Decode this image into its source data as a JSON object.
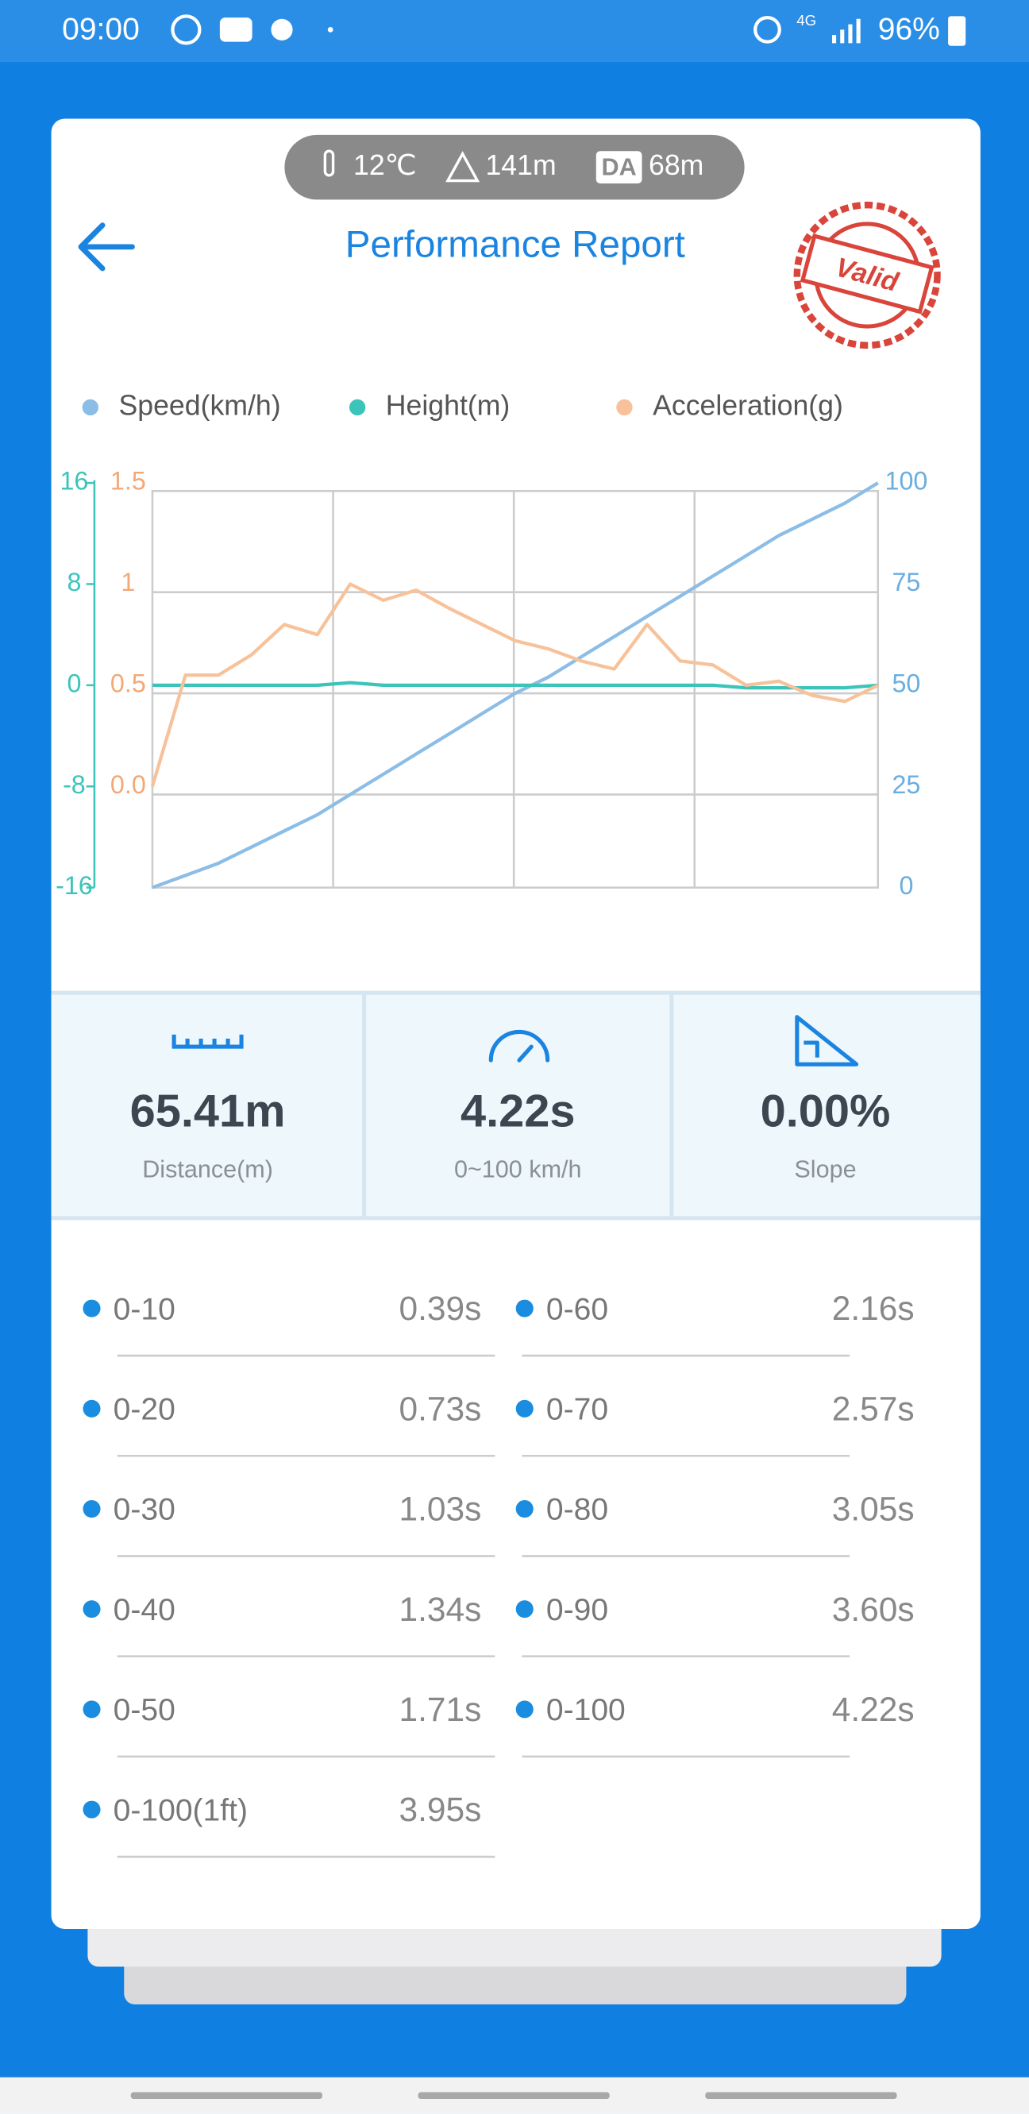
{
  "status_bar": {
    "time": "09:00",
    "network": "4G",
    "battery": "96%"
  },
  "conditions": {
    "temperature": "12℃",
    "altitude": "141m",
    "da_label": "DA",
    "density_altitude": "68m"
  },
  "header": {
    "title": "Performance Report",
    "stamp": "Valid"
  },
  "chart_data": {
    "type": "line",
    "grid": true,
    "legend": "top",
    "series": [
      {
        "name": "Speed(km/h)",
        "color": "#8cbde6",
        "axis": "y2",
        "values": [
          0,
          3,
          6,
          10,
          14,
          18,
          23,
          28,
          33,
          38,
          43,
          48,
          52,
          57,
          62,
          67,
          72,
          77,
          82,
          87,
          91,
          95,
          100
        ]
      },
      {
        "name": "Height(m)",
        "color": "#3cc4bb",
        "axis": "y",
        "values": [
          0,
          0,
          0,
          0,
          0,
          0,
          0.2,
          0,
          0,
          0,
          0,
          0,
          0,
          0,
          0,
          0,
          0,
          0,
          -0.2,
          -0.2,
          -0.2,
          -0.2,
          0
        ]
      },
      {
        "name": "Acceleration(g)",
        "color": "#f7c29a",
        "axis": "y3",
        "values": [
          0.0,
          0.55,
          0.55,
          0.65,
          0.8,
          0.75,
          1.0,
          0.92,
          0.97,
          0.88,
          0.8,
          0.72,
          0.68,
          0.62,
          0.58,
          0.8,
          0.62,
          0.6,
          0.5,
          0.52,
          0.45,
          0.42,
          0.5
        ]
      }
    ],
    "ylim": [
      -16,
      16
    ],
    "yticks": [
      16,
      8,
      0,
      -8,
      -16
    ],
    "y2lim": [
      0,
      100
    ],
    "y2ticks": [
      100,
      75,
      50,
      25,
      0
    ],
    "y3lim": [
      -0.5,
      1.5
    ],
    "y3ticks": [
      1.5,
      1,
      0.5,
      {
        "value": 0,
        "label": "0.0"
      }
    ]
  },
  "stats": [
    {
      "value": "65.41m",
      "label": "Distance(m)"
    },
    {
      "value": "4.22s",
      "label": "0~100 km/h"
    },
    {
      "value": "0.00%",
      "label": "Slope"
    }
  ],
  "splits": [
    {
      "label": "0-10",
      "time": "0.39s"
    },
    {
      "label": "0-20",
      "time": "0.73s"
    },
    {
      "label": "0-30",
      "time": "1.03s"
    },
    {
      "label": "0-40",
      "time": "1.34s"
    },
    {
      "label": "0-50",
      "time": "1.71s"
    },
    {
      "label": "0-60",
      "time": "2.16s"
    },
    {
      "label": "0-70",
      "time": "2.57s"
    },
    {
      "label": "0-80",
      "time": "3.05s"
    },
    {
      "label": "0-90",
      "time": "3.60s"
    },
    {
      "label": "0-100",
      "time": "4.22s"
    },
    {
      "label": "0-100(1ft)",
      "time": "3.95s"
    }
  ]
}
